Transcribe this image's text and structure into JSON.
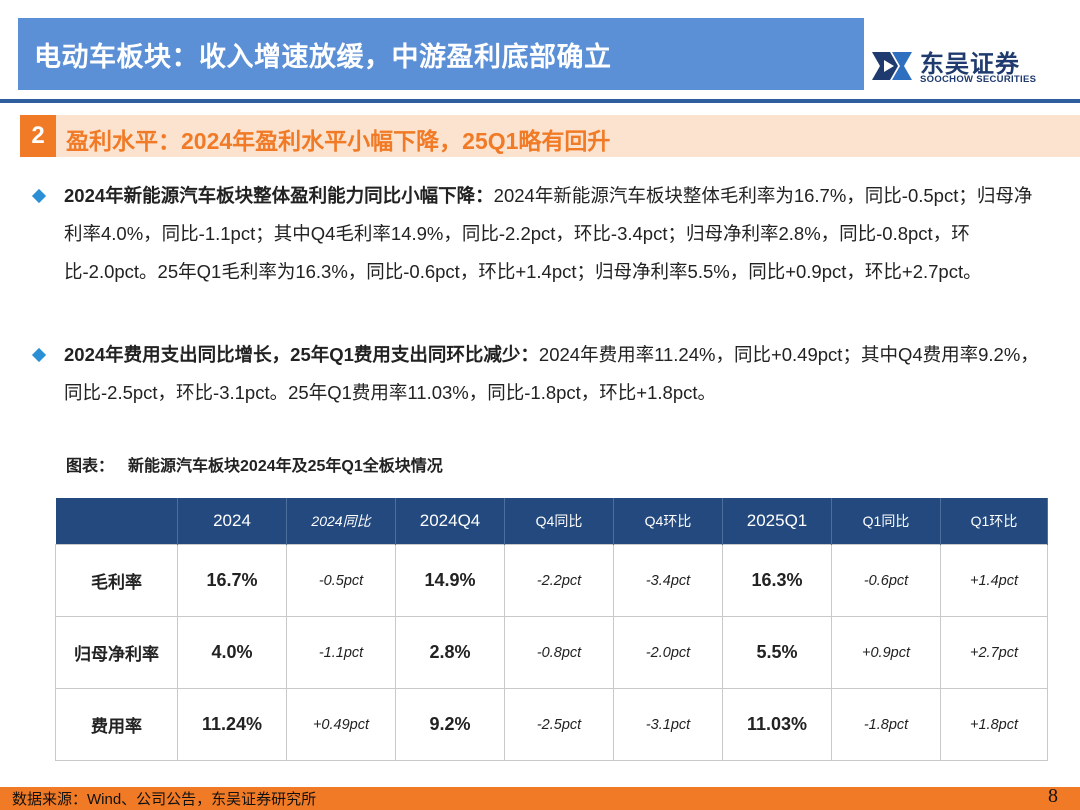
{
  "header": {
    "title": "电动车板块：收入增速放缓，中游盈利底部确立",
    "logo_cn": "东吴证券",
    "logo_en": "SOOCHOW SECURITIES"
  },
  "section": {
    "number": "2",
    "title": "盈利水平：2024年盈利水平小幅下降，25Q1略有回升"
  },
  "bullets": [
    {
      "bold": "2024年新能源汽车板块整体盈利能力同比小幅下降：",
      "text": "2024年新能源汽车板块整体毛利率为16.7%，同比-0.5pct；归母净利率4.0%，同比-1.1pct；其中Q4毛利率14.9%，同比-2.2pct，环比-3.4pct；归母净利率2.8%，同比-0.8pct，环比-2.0pct。25年Q1毛利率为16.3%，同比-0.6pct，环比+1.4pct；归母净利率5.5%，同比+0.9pct，环比+2.7pct。"
    },
    {
      "bold": "2024年费用支出同比增长，25年Q1费用支出同环比减少：",
      "text": "2024年费用率11.24%，同比+0.49pct；其中Q4费用率9.2%，同比-2.5pct，环比-3.1pct。25年Q1费用率11.03%，同比-1.8pct，环比+1.8pct。"
    }
  ],
  "caption": {
    "label": "图表：",
    "title": "新能源汽车板块2024年及25年Q1全板块情况"
  },
  "table": {
    "headers": [
      "",
      "2024",
      "2024同比",
      "2024Q4",
      "Q4同比",
      "Q4环比",
      "2025Q1",
      "Q1同比",
      "Q1环比"
    ],
    "rows": [
      [
        "毛利率",
        "16.7%",
        "-0.5pct",
        "14.9%",
        "-2.2pct",
        "-3.4pct",
        "16.3%",
        "-0.6pct",
        "+1.4pct"
      ],
      [
        "归母净利率",
        "4.0%",
        "-1.1pct",
        "2.8%",
        "-0.8pct",
        "-2.0pct",
        "5.5%",
        "+0.9pct",
        "+2.7pct"
      ],
      [
        "费用率",
        "11.24%",
        "+0.49pct",
        "9.2%",
        "-2.5pct",
        "-3.1pct",
        "11.03%",
        "-1.8pct",
        "+1.8pct"
      ]
    ]
  },
  "footer": {
    "source": "数据来源：Wind、公司公告，东吴证券研究所",
    "page": "8"
  },
  "colors": {
    "title_bar": "#5b8fd6",
    "accent_orange": "#f07a25",
    "table_header": "#23497e",
    "bullet": "#2a8fd4"
  }
}
